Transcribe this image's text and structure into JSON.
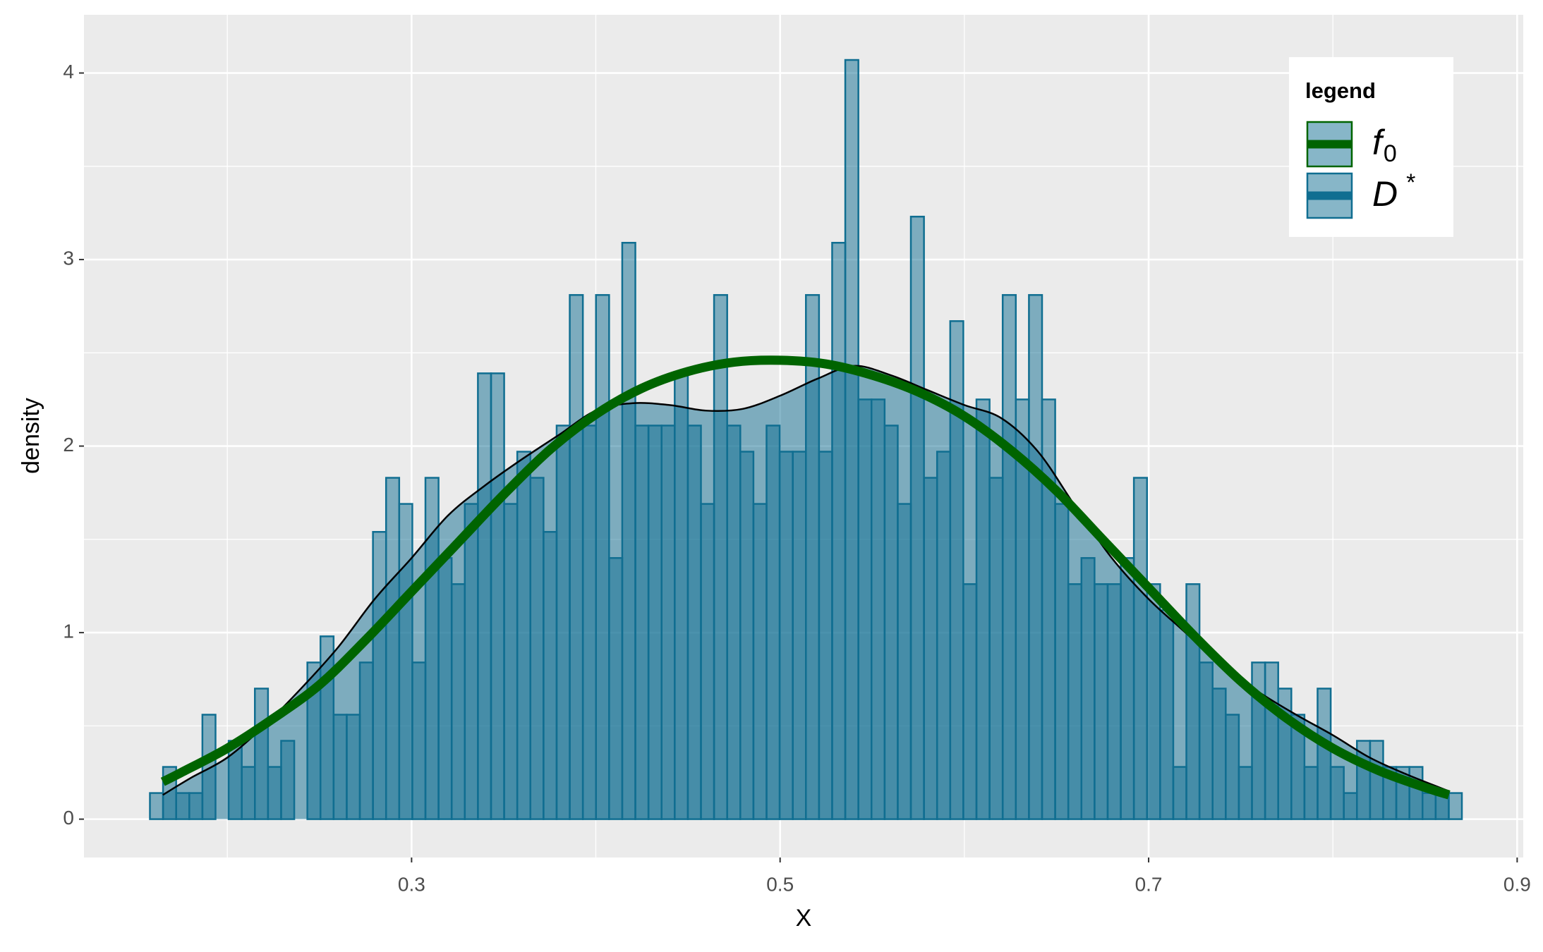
{
  "chart_data": {
    "type": "histogram",
    "xlabel": "X",
    "ylabel": "density",
    "bins": [
      0.158,
      0.16512,
      0.17224,
      0.17936,
      0.18648,
      0.1936,
      0.20072,
      0.20784,
      0.21496,
      0.22208,
      0.2292,
      0.23632,
      0.24344,
      0.25056,
      0.25768,
      0.2648,
      0.27192,
      0.27904,
      0.28616,
      0.29328,
      0.3004,
      0.30752,
      0.31464,
      0.32176,
      0.32888,
      0.336,
      0.34312,
      0.35024,
      0.35736,
      0.36448,
      0.3716,
      0.37872,
      0.38584,
      0.39296,
      0.40008,
      0.4072,
      0.41432,
      0.42144,
      0.42856,
      0.43568,
      0.4428,
      0.44992,
      0.45704,
      0.46416,
      0.47128,
      0.4784,
      0.48552,
      0.49264,
      0.49976,
      0.50688,
      0.514,
      0.52112,
      0.52824,
      0.53536,
      0.54248,
      0.5496,
      0.55672,
      0.56384,
      0.57096,
      0.57808,
      0.5852,
      0.59232,
      0.59944,
      0.60656,
      0.61368,
      0.6208,
      0.62792,
      0.63504,
      0.64216,
      0.64928,
      0.6564,
      0.66352,
      0.67064,
      0.67776,
      0.68488,
      0.692,
      0.69912,
      0.70624,
      0.71336,
      0.72048,
      0.7276,
      0.73472,
      0.74184,
      0.74896,
      0.75608,
      0.7632,
      0.77032,
      0.77744,
      0.78456,
      0.79168,
      0.7988,
      0.80592,
      0.81304,
      0.82016,
      0.82728,
      0.8344,
      0.84152,
      0.84864,
      0.85576,
      0.86288,
      0.87
    ],
    "values": [
      0.14,
      0.28,
      0.14,
      0.14,
      0.56,
      0,
      0.42,
      0.28,
      0.7,
      0.28,
      0.42,
      0,
      0.84,
      0.98,
      0.56,
      0.56,
      0.84,
      1.54,
      1.83,
      1.69,
      0.84,
      1.83,
      1.4,
      1.26,
      1.69,
      2.39,
      2.39,
      1.69,
      1.97,
      1.83,
      1.54,
      2.11,
      2.81,
      2.11,
      2.81,
      1.4,
      3.09,
      2.11,
      2.11,
      2.11,
      2.39,
      2.11,
      1.69,
      2.81,
      2.11,
      1.97,
      1.69,
      2.11,
      1.97,
      1.97,
      2.81,
      1.97,
      3.09,
      4.07,
      2.25,
      2.25,
      2.11,
      1.69,
      3.23,
      1.83,
      1.97,
      2.67,
      1.26,
      2.25,
      1.83,
      2.81,
      2.25,
      2.81,
      2.25,
      1.69,
      1.26,
      1.4,
      1.26,
      1.26,
      1.4,
      1.83,
      1.26,
      1.12,
      0.28,
      1.26,
      0.84,
      0.7,
      0.56,
      0.28,
      0.84,
      0.84,
      0.7,
      0.56,
      0.28,
      0.7,
      0.28,
      0.14,
      0.42,
      0.42,
      0.28,
      0.28,
      0.28,
      0.14,
      0.14,
      0.14
    ],
    "color": "#106e91",
    "density": {
      "color": "#000000",
      "fill": "#106e91",
      "x": [
        0.165,
        0.18,
        0.2,
        0.22,
        0.24,
        0.26,
        0.28,
        0.3,
        0.32,
        0.34,
        0.36,
        0.38,
        0.4,
        0.42,
        0.44,
        0.46,
        0.48,
        0.5,
        0.52,
        0.54,
        0.56,
        0.58,
        0.6,
        0.62,
        0.64,
        0.66,
        0.68,
        0.7,
        0.72,
        0.74,
        0.76,
        0.78,
        0.8,
        0.82,
        0.84,
        0.863
      ],
      "y": [
        0.13,
        0.22,
        0.33,
        0.5,
        0.7,
        0.92,
        1.18,
        1.4,
        1.63,
        1.79,
        1.93,
        2.06,
        2.19,
        2.23,
        2.22,
        2.19,
        2.2,
        2.27,
        2.36,
        2.43,
        2.38,
        2.3,
        2.22,
        2.15,
        1.97,
        1.68,
        1.4,
        1.18,
        1.0,
        0.82,
        0.68,
        0.56,
        0.45,
        0.33,
        0.24,
        0.15
      ]
    },
    "f0": {
      "color": "#006400",
      "x": [
        0.165,
        0.175,
        0.2,
        0.225,
        0.25,
        0.275,
        0.3,
        0.325,
        0.35,
        0.375,
        0.4,
        0.425,
        0.45,
        0.475,
        0.5,
        0.525,
        0.55,
        0.575,
        0.6,
        0.625,
        0.65,
        0.675,
        0.7,
        0.725,
        0.75,
        0.775,
        0.8,
        0.825,
        0.85,
        0.863
      ],
      "y": [
        0.2,
        0.25,
        0.38,
        0.54,
        0.72,
        0.96,
        1.22,
        1.48,
        1.74,
        1.98,
        2.17,
        2.31,
        2.4,
        2.45,
        2.46,
        2.44,
        2.38,
        2.29,
        2.16,
        1.98,
        1.76,
        1.5,
        1.24,
        0.98,
        0.74,
        0.54,
        0.38,
        0.26,
        0.17,
        0.13
      ]
    },
    "legend": {
      "title": "legend",
      "position": "top-right",
      "entries": [
        {
          "base": "f",
          "sub": "0",
          "line_color": "#006400",
          "border": "#006400"
        },
        {
          "base": "D",
          "sup": "*",
          "line_color": "#106e91",
          "border": "#106e91"
        }
      ]
    },
    "xlim": [
      0.1222,
      0.9033
    ],
    "ylim": [
      -0.2056,
      4.312
    ],
    "xticks": [
      0.3,
      0.5,
      0.7,
      0.9
    ],
    "yticks": [
      0,
      1,
      2,
      3,
      4
    ],
    "x_minor_ticks": [
      0.2,
      0.4,
      0.6,
      0.8
    ],
    "y_minor_ticks": [
      0.5,
      1.5,
      2.5,
      3.5
    ],
    "grid": true
  }
}
